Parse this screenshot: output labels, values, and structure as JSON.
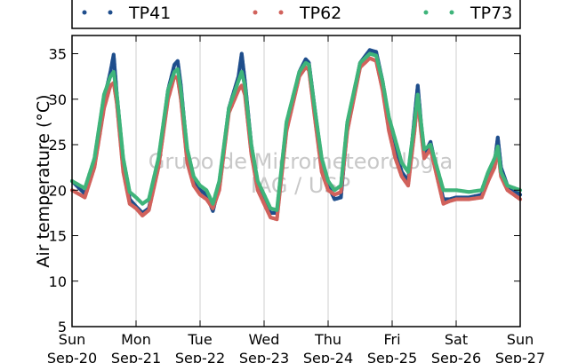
{
  "chart_data": {
    "type": "scatter",
    "title": "",
    "xlabel": "",
    "ylabel": "Air temperature (°C)",
    "ylim": [
      5,
      37
    ],
    "yticks": [
      5,
      10,
      15,
      20,
      25,
      30,
      35
    ],
    "xlim_days": [
      0,
      7
    ],
    "xticks": [
      {
        "day": "Sun",
        "date": "Sep-20"
      },
      {
        "day": "Mon",
        "date": "Sep-21"
      },
      {
        "day": "Tue",
        "date": "Sep-22"
      },
      {
        "day": "Wed",
        "date": "Sep-23"
      },
      {
        "day": "Thu",
        "date": "Sep-24"
      },
      {
        "day": "Fri",
        "date": "Sep-25"
      },
      {
        "day": "Sat",
        "date": "Sep-26"
      },
      {
        "day": "Sun",
        "date": "Sep-27"
      }
    ],
    "grid": "vertical",
    "legend_position": "top",
    "watermark": [
      "Grupo de Micrometeorologia",
      "IAG / USP"
    ],
    "series": [
      {
        "name": "TP41",
        "color": "#1f4e8c",
        "x": [
          0,
          0.2,
          0.35,
          0.5,
          0.6,
          0.65,
          0.7,
          0.8,
          0.9,
          1.0,
          1.1,
          1.2,
          1.35,
          1.5,
          1.6,
          1.65,
          1.7,
          1.8,
          1.9,
          2.0,
          2.1,
          2.2,
          2.3,
          2.45,
          2.6,
          2.65,
          2.7,
          2.8,
          2.9,
          3.0,
          3.1,
          3.2,
          3.35,
          3.55,
          3.65,
          3.7,
          3.8,
          3.9,
          4.0,
          4.1,
          4.2,
          4.3,
          4.5,
          4.65,
          4.75,
          4.85,
          4.95,
          5.05,
          5.15,
          5.25,
          5.35,
          5.4,
          5.45,
          5.5,
          5.6,
          5.7,
          5.8,
          5.9,
          6.0,
          6.2,
          6.4,
          6.5,
          6.6,
          6.65,
          6.7,
          6.8,
          7.0
        ],
        "y": [
          21.0,
          19.6,
          23.0,
          30.0,
          33.0,
          34.9,
          30.5,
          23.0,
          19.0,
          18.2,
          17.5,
          18.0,
          23.0,
          31.0,
          33.8,
          34.2,
          31.5,
          24.0,
          21.0,
          20.0,
          19.5,
          17.7,
          20.5,
          29.0,
          32.5,
          35.0,
          32.0,
          25.0,
          20.5,
          19.0,
          17.5,
          17.5,
          27.0,
          33.0,
          34.4,
          34.0,
          28.5,
          23.0,
          20.5,
          19.0,
          19.2,
          27.0,
          34.0,
          35.4,
          35.2,
          32.0,
          27.5,
          24.5,
          22.0,
          21.0,
          28.0,
          31.5,
          27.5,
          24.0,
          25.3,
          22.0,
          19.0,
          19.0,
          19.2,
          19.2,
          19.5,
          21.5,
          23.0,
          25.8,
          22.5,
          20.5,
          19.5
        ]
      },
      {
        "name": "TP62",
        "color": "#d1625c",
        "x": [
          0,
          0.2,
          0.35,
          0.5,
          0.6,
          0.65,
          0.7,
          0.8,
          0.9,
          1.0,
          1.1,
          1.2,
          1.35,
          1.5,
          1.6,
          1.65,
          1.7,
          1.8,
          1.9,
          2.0,
          2.1,
          2.2,
          2.3,
          2.45,
          2.6,
          2.65,
          2.7,
          2.8,
          2.9,
          3.0,
          3.1,
          3.2,
          3.35,
          3.55,
          3.65,
          3.7,
          3.8,
          3.9,
          4.0,
          4.1,
          4.2,
          4.3,
          4.5,
          4.65,
          4.75,
          4.85,
          4.95,
          5.05,
          5.15,
          5.25,
          5.35,
          5.4,
          5.45,
          5.5,
          5.6,
          5.7,
          5.8,
          5.9,
          6.0,
          6.2,
          6.4,
          6.5,
          6.6,
          6.65,
          6.7,
          6.8,
          7.0
        ],
        "y": [
          20.0,
          19.2,
          22.5,
          29.0,
          31.5,
          31.8,
          29.5,
          22.0,
          18.5,
          18.0,
          17.2,
          17.8,
          22.5,
          30.0,
          32.5,
          32.3,
          30.0,
          23.0,
          20.5,
          19.5,
          19.0,
          18.0,
          20.0,
          28.5,
          31.0,
          31.5,
          30.5,
          24.0,
          20.0,
          18.5,
          17.0,
          16.8,
          26.5,
          32.5,
          33.5,
          33.2,
          27.5,
          22.0,
          20.0,
          19.5,
          19.8,
          26.5,
          33.5,
          34.5,
          34.2,
          31.0,
          26.5,
          23.5,
          21.5,
          20.5,
          26.5,
          30.0,
          26.5,
          23.5,
          24.5,
          21.5,
          18.5,
          18.8,
          19.0,
          19.0,
          19.2,
          21.0,
          22.5,
          24.5,
          21.5,
          20.0,
          19.0
        ]
      },
      {
        "name": "TP73",
        "color": "#3fb47a",
        "x": [
          0,
          0.2,
          0.35,
          0.5,
          0.6,
          0.65,
          0.7,
          0.8,
          0.9,
          1.0,
          1.1,
          1.2,
          1.35,
          1.5,
          1.6,
          1.65,
          1.7,
          1.8,
          1.9,
          2.0,
          2.1,
          2.2,
          2.3,
          2.45,
          2.6,
          2.65,
          2.7,
          2.8,
          2.9,
          3.0,
          3.1,
          3.2,
          3.35,
          3.55,
          3.65,
          3.7,
          3.8,
          3.9,
          4.0,
          4.1,
          4.2,
          4.3,
          4.5,
          4.65,
          4.75,
          4.85,
          4.95,
          5.05,
          5.15,
          5.25,
          5.35,
          5.4,
          5.45,
          5.5,
          5.6,
          5.7,
          5.8,
          5.9,
          6.0,
          6.2,
          6.4,
          6.5,
          6.6,
          6.65,
          6.7,
          6.8,
          7.0
        ],
        "y": [
          21.0,
          20.2,
          23.5,
          30.5,
          32.5,
          33.0,
          30.5,
          23.5,
          19.8,
          19.2,
          18.5,
          19.0,
          23.5,
          31.0,
          33.0,
          33.3,
          31.0,
          24.5,
          21.5,
          20.5,
          20.0,
          18.5,
          21.0,
          29.0,
          32.0,
          33.0,
          31.5,
          25.0,
          21.0,
          19.5,
          18.0,
          17.8,
          27.5,
          33.0,
          34.0,
          33.8,
          28.5,
          23.5,
          21.0,
          20.0,
          20.5,
          27.5,
          34.0,
          35.0,
          34.8,
          32.0,
          28.0,
          25.5,
          23.0,
          22.0,
          27.5,
          30.5,
          27.5,
          24.5,
          25.0,
          22.5,
          20.0,
          20.0,
          20.0,
          19.8,
          20.0,
          22.0,
          23.5,
          24.8,
          22.0,
          20.5,
          20.0
        ]
      }
    ]
  }
}
